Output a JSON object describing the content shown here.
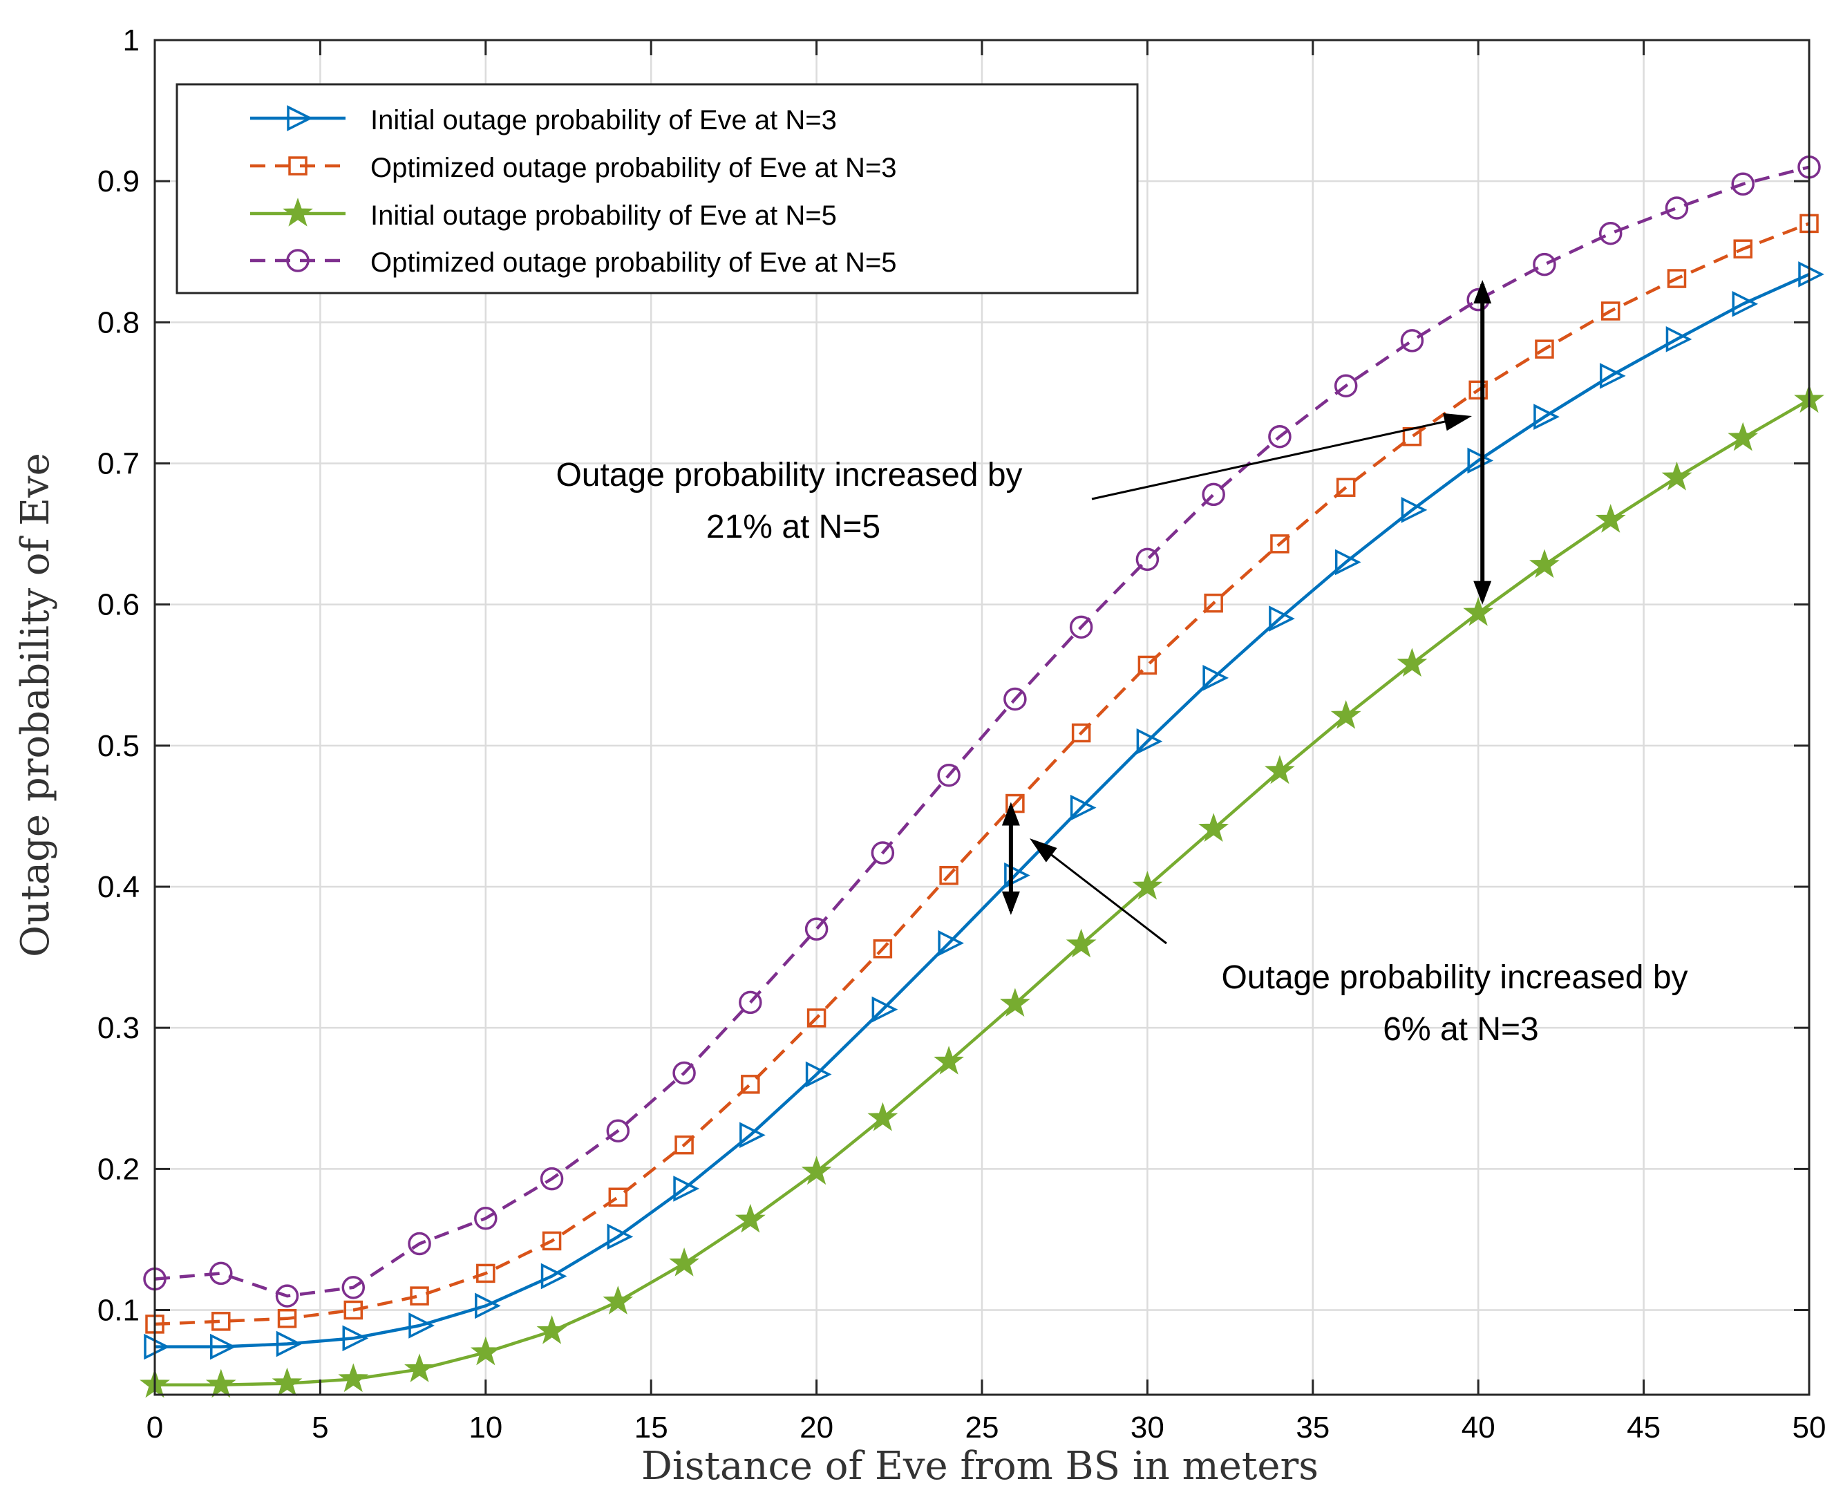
{
  "chart_data": {
    "type": "line",
    "title": "",
    "xlabel": "Distance of Eve from BS in meters",
    "ylabel": "Outage probability of Eve",
    "xlim": [
      0,
      50
    ],
    "ylim": [
      0.04,
      1
    ],
    "grid": true,
    "legend_location": "top-left",
    "x_ticks": [
      0,
      5,
      10,
      15,
      20,
      25,
      30,
      35,
      40,
      45,
      50
    ],
    "x_tick_labels": [
      "0",
      "5",
      "10",
      "15",
      "20",
      "25",
      "30",
      "35",
      "40",
      "45",
      "50"
    ],
    "y_ticks": [
      0.1,
      0.2,
      0.3,
      0.4,
      0.5,
      0.6,
      0.7,
      0.8,
      0.9,
      1
    ],
    "y_tick_labels": [
      "0.1",
      "0.2",
      "0.3",
      "0.4",
      "0.5",
      "0.6",
      "0.7",
      "0.8",
      "0.9",
      "1"
    ],
    "x": [
      0,
      2,
      4,
      6,
      8,
      10,
      12,
      14,
      16,
      18,
      20,
      22,
      24,
      26,
      28,
      30,
      32,
      34,
      36,
      38,
      40,
      42,
      44,
      46,
      48,
      50
    ],
    "series": [
      {
        "name": "Initial outage probability of Eve at N=3",
        "color": "#0072BD",
        "dash": "solid",
        "marker": "triangle-right",
        "values": [
          0.074,
          0.074,
          0.076,
          0.08,
          0.089,
          0.103,
          0.124,
          0.152,
          0.186,
          0.224,
          0.267,
          0.313,
          0.36,
          0.408,
          0.456,
          0.503,
          0.548,
          0.59,
          0.63,
          0.667,
          0.702,
          0.733,
          0.762,
          0.788,
          0.813,
          0.834
        ]
      },
      {
        "name": "Optimized outage probability of Eve at N=3",
        "color": "#D95319",
        "dash": "dashed",
        "marker": "square",
        "values": [
          0.09,
          0.092,
          0.094,
          0.1,
          0.11,
          0.126,
          0.149,
          0.18,
          0.217,
          0.26,
          0.307,
          0.356,
          0.408,
          0.459,
          0.509,
          0.557,
          0.601,
          0.643,
          0.683,
          0.719,
          0.752,
          0.781,
          0.808,
          0.831,
          0.852,
          0.87
        ]
      },
      {
        "name": "Initial outage probability of Eve at N=5",
        "color": "#77AC30",
        "dash": "solid",
        "marker": "star",
        "values": [
          0.047,
          0.047,
          0.048,
          0.051,
          0.058,
          0.07,
          0.085,
          0.106,
          0.133,
          0.164,
          0.198,
          0.236,
          0.276,
          0.317,
          0.359,
          0.4,
          0.441,
          0.482,
          0.521,
          0.558,
          0.594,
          0.628,
          0.66,
          0.69,
          0.718,
          0.745
        ]
      },
      {
        "name": "Optimized outage probability of Eve at N=5",
        "color": "#7E2F8E",
        "dash": "dashed",
        "marker": "circle",
        "values": [
          0.122,
          0.126,
          0.11,
          0.116,
          0.147,
          0.165,
          0.193,
          0.227,
          0.268,
          0.318,
          0.37,
          0.424,
          0.479,
          0.533,
          0.584,
          0.632,
          0.678,
          0.719,
          0.755,
          0.787,
          0.816,
          0.841,
          0.863,
          0.881,
          0.898,
          0.91
        ]
      }
    ],
    "annotations": [
      {
        "lines": [
          "Outage probability increased by",
          "21% at N=5"
        ],
        "arrow_at_x": 40,
        "arrow_range": [
          0.6,
          0.83
        ]
      },
      {
        "lines": [
          "Outage probability increased by",
          "6% at N=3"
        ],
        "arrow_at_x": 26,
        "arrow_range": [
          0.38,
          0.46
        ]
      }
    ]
  }
}
